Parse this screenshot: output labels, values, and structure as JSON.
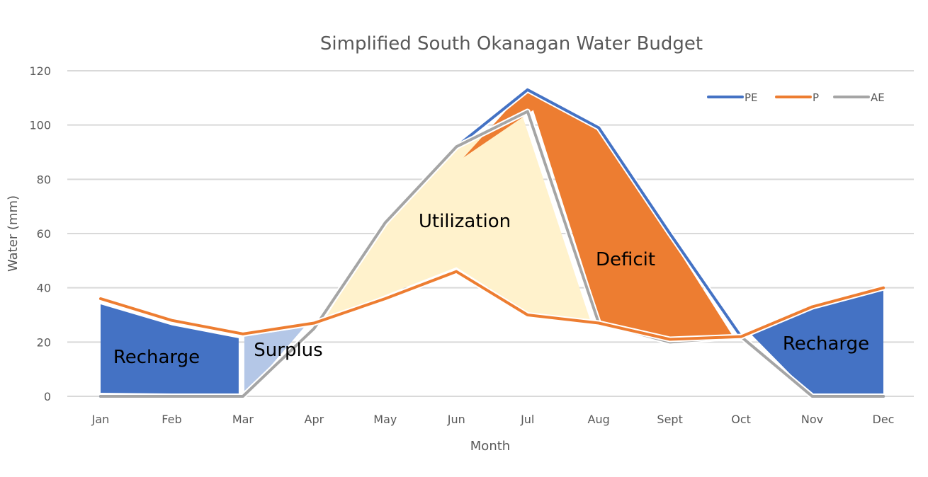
{
  "chart_data": {
    "type": "line",
    "title": "Simplified South Okanagan Water Budget",
    "xlabel": "Month",
    "ylabel": "Water (mm)",
    "ylim": [
      0,
      120
    ],
    "yticks": [
      0,
      20,
      40,
      60,
      80,
      100,
      120
    ],
    "grid": true,
    "legend_position": "top-right",
    "categories": [
      "Jan",
      "Feb",
      "Mar",
      "Apr",
      "May",
      "Jun",
      "Jul",
      "Aug",
      "Sept",
      "Oct",
      "Nov",
      "Dec"
    ],
    "series": [
      {
        "name": "PE",
        "color": "#4472C4",
        "values": [
          0,
          0,
          0,
          25,
          64,
          92,
          113,
          99,
          60,
          22,
          0,
          0
        ]
      },
      {
        "name": "P",
        "color": "#ED7D31",
        "values": [
          36,
          28,
          23,
          27,
          36,
          46,
          30,
          27,
          21,
          22,
          33,
          40
        ]
      },
      {
        "name": "AE",
        "color": "#A5A5A5",
        "values": [
          0,
          0,
          0,
          25,
          64,
          92,
          105,
          27,
          20,
          22,
          0,
          0
        ]
      }
    ],
    "regions": [
      {
        "label": "Recharge",
        "color": "#4472C4",
        "months": [
          "Jan",
          "Mar"
        ]
      },
      {
        "label": "Surplus",
        "color": "#B4C7E7",
        "months": [
          "Mar",
          "Apr"
        ]
      },
      {
        "label": "Utilization",
        "color": "#FFF2CC",
        "months": [
          "Apr",
          "Aug"
        ]
      },
      {
        "label": "Deficit",
        "color": "#ED7D31",
        "months": [
          "Jun",
          "Oct"
        ]
      },
      {
        "label": "Recharge",
        "color": "#4472C4",
        "months": [
          "Oct",
          "Dec"
        ]
      }
    ]
  }
}
